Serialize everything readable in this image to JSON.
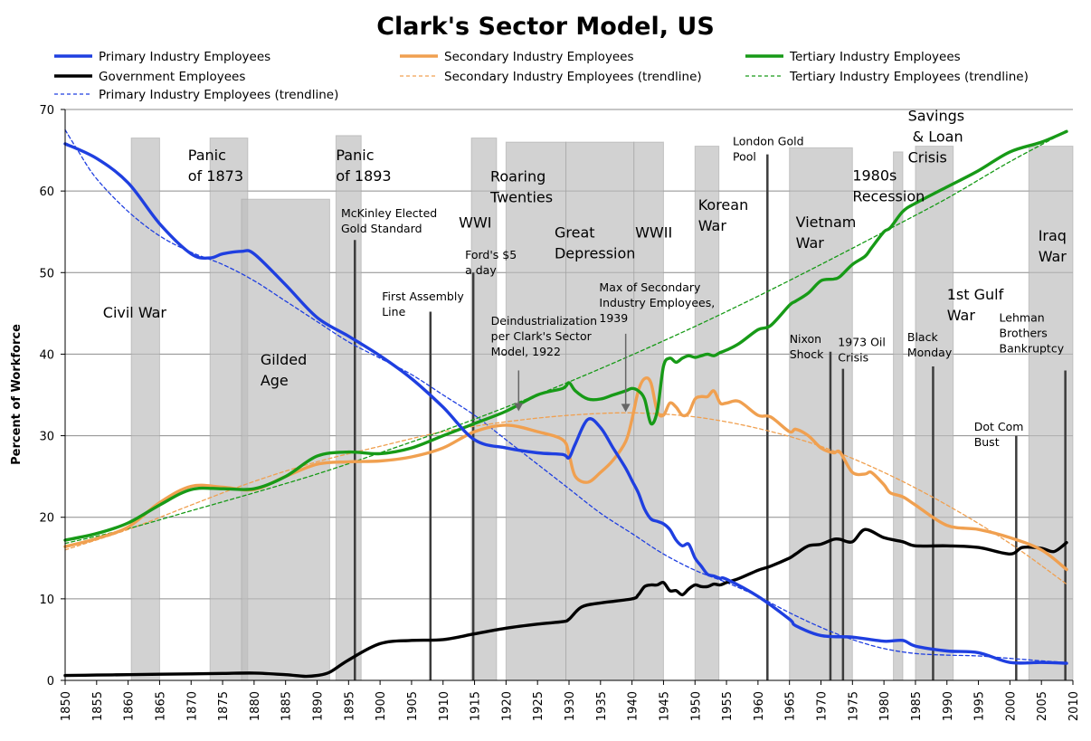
{
  "chart_data": {
    "type": "line",
    "title": "Clark's Sector Model, US",
    "xlabel": "",
    "ylabel": "Percent of Workforce",
    "xlim": [
      1850,
      2010
    ],
    "ylim": [
      0,
      70
    ],
    "xticks": [
      "1850",
      "1855",
      "1860",
      "1865",
      "1870",
      "1875",
      "1880",
      "1885",
      "1890",
      "1895",
      "1900",
      "1905",
      "1910",
      "1915",
      "1920",
      "1925",
      "1930",
      "1935",
      "1940",
      "1945",
      "1950",
      "1955",
      "1960",
      "1965",
      "1970",
      "1975",
      "1980",
      "1985",
      "1990",
      "1995",
      "2000",
      "2005",
      "2010"
    ],
    "yticks": [
      "0",
      "10",
      "20",
      "30",
      "40",
      "50",
      "60",
      "70"
    ],
    "grid": "horizontal",
    "legend_position": "top",
    "series": [
      {
        "name": "Primary Industry Employees",
        "color": "#1f3fe0",
        "style": "solid",
        "x": [
          1850,
          1855,
          1860,
          1865,
          1870,
          1873,
          1875,
          1878,
          1880,
          1885,
          1890,
          1895,
          1900,
          1905,
          1910,
          1915,
          1920,
          1925,
          1929,
          1930,
          1931,
          1933,
          1935,
          1937,
          1939,
          1940,
          1941,
          1942,
          1943,
          1944,
          1945,
          1946,
          1947,
          1948,
          1949,
          1950,
          1951,
          1952,
          1953,
          1954,
          1955,
          1960,
          1965,
          1966,
          1970,
          1975,
          1980,
          1983,
          1985,
          1990,
          1995,
          2000,
          2005,
          2009
        ],
        "y": [
          65.8,
          64.0,
          61.0,
          56.0,
          52.3,
          51.8,
          52.3,
          52.6,
          52.3,
          48.5,
          44.5,
          42.2,
          39.8,
          37.0,
          33.5,
          29.5,
          28.5,
          27.9,
          27.7,
          27.3,
          29.0,
          32.0,
          31.0,
          28.5,
          26.0,
          24.5,
          23.0,
          21.0,
          19.8,
          19.5,
          19.2,
          18.5,
          17.2,
          16.5,
          16.7,
          15.0,
          14.0,
          13.0,
          12.8,
          12.5,
          12.4,
          10.3,
          7.5,
          6.7,
          5.5,
          5.3,
          4.8,
          4.9,
          4.2,
          3.6,
          3.4,
          2.2,
          2.2,
          2.1
        ]
      },
      {
        "name": "Secondary Industry Employees",
        "color": "#f0a050",
        "style": "solid",
        "x": [
          1850,
          1855,
          1860,
          1865,
          1870,
          1875,
          1880,
          1885,
          1890,
          1895,
          1900,
          1905,
          1910,
          1915,
          1920,
          1925,
          1929,
          1930,
          1931,
          1933,
          1935,
          1937,
          1939,
          1940,
          1941,
          1942,
          1943,
          1944,
          1945,
          1946,
          1947,
          1948,
          1949,
          1950,
          1951,
          1952,
          1953,
          1954,
          1955,
          1957,
          1960,
          1962,
          1965,
          1966,
          1968,
          1970,
          1972,
          1973,
          1975,
          1977,
          1978,
          1980,
          1981,
          1983,
          1985,
          1990,
          1995,
          2000,
          2005,
          2009
        ],
        "y": [
          16.4,
          17.4,
          18.8,
          21.8,
          23.8,
          23.7,
          23.4,
          25.0,
          26.5,
          26.8,
          26.9,
          27.4,
          28.5,
          30.5,
          31.3,
          30.5,
          29.5,
          27.7,
          25.0,
          24.3,
          25.5,
          27.0,
          29.3,
          32.0,
          35.5,
          37.0,
          36.5,
          33.0,
          32.5,
          34.0,
          33.5,
          32.5,
          32.8,
          34.5,
          34.8,
          34.8,
          35.5,
          34.0,
          34.0,
          34.2,
          32.5,
          32.3,
          30.5,
          30.8,
          30.0,
          28.5,
          27.9,
          28.0,
          25.5,
          25.3,
          25.5,
          24.0,
          23.0,
          22.5,
          21.5,
          19.0,
          18.5,
          17.5,
          16.0,
          13.6
        ]
      },
      {
        "name": "Tertiary Industry Employees",
        "color": "#179a17",
        "style": "solid",
        "x": [
          1850,
          1855,
          1860,
          1865,
          1870,
          1875,
          1880,
          1885,
          1890,
          1895,
          1900,
          1905,
          1910,
          1915,
          1920,
          1925,
          1929,
          1930,
          1931,
          1933,
          1935,
          1937,
          1939,
          1940,
          1941,
          1942,
          1943,
          1944,
          1945,
          1946,
          1947,
          1948,
          1949,
          1950,
          1951,
          1952,
          1953,
          1954,
          1955,
          1957,
          1960,
          1962,
          1965,
          1966,
          1968,
          1970,
          1972,
          1973,
          1975,
          1977,
          1978,
          1980,
          1981,
          1983,
          1985,
          1990,
          1995,
          2000,
          2005,
          2009
        ],
        "y": [
          17.2,
          18.0,
          19.3,
          21.5,
          23.4,
          23.5,
          23.5,
          25.0,
          27.5,
          28.0,
          27.8,
          28.5,
          30.0,
          31.5,
          33.0,
          35.0,
          35.8,
          36.5,
          35.5,
          34.5,
          34.5,
          35.0,
          35.5,
          35.8,
          35.5,
          34.5,
          31.5,
          33.0,
          38.5,
          39.5,
          39.0,
          39.5,
          39.8,
          39.6,
          39.8,
          40.0,
          39.8,
          40.2,
          40.5,
          41.3,
          43.0,
          43.5,
          46.0,
          46.5,
          47.5,
          49.0,
          49.2,
          49.5,
          51.0,
          52.0,
          53.0,
          55.0,
          55.5,
          57.5,
          58.5,
          60.5,
          62.5,
          64.8,
          66.0,
          67.3
        ]
      },
      {
        "name": "Government Employees",
        "color": "#000000",
        "style": "solid",
        "x": [
          1850,
          1855,
          1860,
          1865,
          1870,
          1875,
          1880,
          1885,
          1888,
          1890,
          1892,
          1895,
          1900,
          1905,
          1910,
          1915,
          1920,
          1925,
          1929,
          1930,
          1932,
          1935,
          1940,
          1941,
          1942,
          1943,
          1944,
          1945,
          1946,
          1947,
          1948,
          1949,
          1950,
          1951,
          1952,
          1953,
          1954,
          1955,
          1957,
          1960,
          1962,
          1965,
          1966,
          1968,
          1970,
          1972,
          1973,
          1975,
          1977,
          1980,
          1983,
          1985,
          1990,
          1995,
          2000,
          2002,
          2005,
          2007,
          2009
        ],
        "y": [
          0.6,
          0.65,
          0.7,
          0.75,
          0.8,
          0.85,
          0.9,
          0.7,
          0.5,
          0.6,
          1.0,
          2.5,
          4.5,
          4.9,
          5.0,
          5.7,
          6.4,
          6.9,
          7.2,
          7.5,
          9.0,
          9.5,
          10.0,
          10.5,
          11.5,
          11.7,
          11.7,
          12.0,
          11.0,
          11.0,
          10.5,
          11.2,
          11.7,
          11.5,
          11.5,
          11.8,
          11.7,
          12.0,
          12.5,
          13.5,
          14.0,
          15.0,
          15.5,
          16.5,
          16.7,
          17.3,
          17.3,
          17.0,
          18.5,
          17.5,
          17.0,
          16.5,
          16.5,
          16.3,
          15.5,
          16.3,
          16.2,
          15.8,
          16.9
        ]
      },
      {
        "name": "Primary Industry Employees (trendline)",
        "color": "#1f3fe0",
        "style": "dashed",
        "x": [
          1850,
          1852,
          1855,
          1860,
          1865,
          1870,
          1875,
          1880,
          1885,
          1890,
          1895,
          1900,
          1905,
          1910,
          1915,
          1920,
          1925,
          1930,
          1935,
          1940,
          1945,
          1950,
          1955,
          1960,
          1965,
          1970,
          1975,
          1980,
          1985,
          1990,
          1995,
          2000,
          2005,
          2009
        ],
        "y": [
          67.5,
          65.0,
          61.5,
          57.5,
          54.5,
          52.5,
          51.0,
          49.0,
          46.5,
          44.0,
          41.5,
          39.5,
          37.5,
          35.0,
          32.5,
          29.5,
          26.5,
          23.5,
          20.5,
          18.0,
          15.5,
          13.5,
          12.0,
          10.3,
          8.3,
          6.5,
          5.0,
          3.9,
          3.3,
          3.1,
          3.0,
          2.7,
          2.4,
          2.2
        ]
      },
      {
        "name": "Secondary Industry Employees (trendline)",
        "color": "#f0a050",
        "style": "dashed",
        "x": [
          1850,
          1860,
          1870,
          1880,
          1890,
          1900,
          1910,
          1920,
          1930,
          1940,
          1950,
          1960,
          1970,
          1980,
          1990,
          2000,
          2009
        ],
        "y": [
          16.0,
          18.5,
          21.5,
          24.4,
          26.8,
          28.7,
          30.5,
          31.7,
          32.5,
          32.8,
          32.3,
          30.9,
          28.7,
          25.5,
          21.5,
          16.8,
          11.8
        ]
      },
      {
        "name": "Tertiary Industry Employees (trendline)",
        "color": "#179a17",
        "style": "dashed",
        "x": [
          1850,
          1860,
          1870,
          1880,
          1890,
          1900,
          1910,
          1920,
          1930,
          1940,
          1950,
          1960,
          1970,
          1980,
          1990,
          2000,
          2009
        ],
        "y": [
          16.8,
          18.6,
          20.8,
          23.0,
          25.3,
          27.9,
          30.6,
          33.5,
          36.6,
          39.9,
          43.4,
          47.1,
          51.0,
          55.0,
          59.1,
          63.6,
          67.3
        ]
      }
    ],
    "legend": [
      {
        "label": "Primary Industry Employees",
        "series": 0
      },
      {
        "label": "Secondary Industry Employees",
        "series": 1
      },
      {
        "label": "Tertiary Industry Employees",
        "series": 2
      },
      {
        "label": "Government Employees",
        "series": 3
      },
      {
        "label": "Secondary Industry Employees (trendline)",
        "series": 5
      },
      {
        "label": "Tertiary Industry Employees (trendline)",
        "series": 6
      },
      {
        "label": "Primary Industry Employees (trendline)",
        "series": 4
      }
    ],
    "shaded_periods": [
      {
        "x0": 1860.5,
        "x1": 1865,
        "ytop": 66.5
      },
      {
        "x0": 1873,
        "x1": 1879,
        "ytop": 66.5
      },
      {
        "x0": 1878,
        "x1": 1892,
        "ytop": 59.0
      },
      {
        "x0": 1893,
        "x1": 1897,
        "ytop": 66.8
      },
      {
        "x0": 1914.5,
        "x1": 1918.5,
        "ytop": 66.5
      },
      {
        "x0": 1920,
        "x1": 1929.5,
        "ytop": 66.0
      },
      {
        "x0": 1929.5,
        "x1": 1940.3,
        "ytop": 66.0
      },
      {
        "x0": 1940.3,
        "x1": 1945,
        "ytop": 66.0
      },
      {
        "x0": 1950,
        "x1": 1953.8,
        "ytop": 65.5
      },
      {
        "x0": 1965,
        "x1": 1975,
        "ytop": 65.3
      },
      {
        "x0": 1981.5,
        "x1": 1983,
        "ytop": 64.8
      },
      {
        "x0": 1985,
        "x1": 1991,
        "ytop": 65.5
      },
      {
        "x0": 2003,
        "x1": 2010,
        "ytop": 65.5
      }
    ],
    "event_lines": [
      {
        "x": 1896,
        "ytop": 54.0
      },
      {
        "x": 1908,
        "ytop": 45.2
      },
      {
        "x": 1914.8,
        "ytop": 50.0
      },
      {
        "x": 1961.5,
        "ytop": 64.5
      },
      {
        "x": 1971.5,
        "ytop": 40.3
      },
      {
        "x": 1973.5,
        "ytop": 38.2
      },
      {
        "x": 1987.8,
        "ytop": 38.5
      },
      {
        "x": 2001,
        "ytop": 30.0
      },
      {
        "x": 2008.8,
        "ytop": 38.0
      }
    ],
    "annotations": [
      {
        "lines": [
          "Civil War"
        ],
        "x": 1856,
        "y": 44.5,
        "size": "lg"
      },
      {
        "lines": [
          "Panic",
          "of 1873"
        ],
        "x": 1869.5,
        "y": 63.8,
        "size": "lg"
      },
      {
        "lines": [
          "Gilded",
          "Age"
        ],
        "x": 1881,
        "y": 38.7,
        "size": "lg"
      },
      {
        "lines": [
          "Panic",
          "of 1893"
        ],
        "x": 1893,
        "y": 63.8,
        "size": "lg"
      },
      {
        "lines": [
          "McKinley Elected",
          "Gold  Standard"
        ],
        "x": 1893.8,
        "y": 56.8,
        "size": "sm"
      },
      {
        "lines": [
          "First Assembly",
          "Line"
        ],
        "x": 1900.3,
        "y": 46.6,
        "size": "sm"
      },
      {
        "lines": [
          "WWI"
        ],
        "x": 1912.5,
        "y": 55.5,
        "size": "lg"
      },
      {
        "lines": [
          "Ford's $5",
          "a day"
        ],
        "x": 1913.5,
        "y": 51.7,
        "size": "sm"
      },
      {
        "lines": [
          "Roaring",
          "Twenties"
        ],
        "x": 1917.5,
        "y": 61.2,
        "size": "lg"
      },
      {
        "lines": [
          "Great",
          "Depression"
        ],
        "x": 1927.7,
        "y": 54.3,
        "size": "lg"
      },
      {
        "lines": [
          "WWII"
        ],
        "x": 1940.5,
        "y": 54.3,
        "size": "lg"
      },
      {
        "lines": [
          "Deindustrialization",
          "per Clark's Sector",
          "Model, 1922"
        ],
        "x": 1917.6,
        "y": 43.6,
        "size": "sm"
      },
      {
        "lines": [
          "Max of Secondary",
          "Industry Employees,",
          "1939"
        ],
        "x": 1934.8,
        "y": 47.7,
        "size": "sm"
      },
      {
        "lines": [
          "Korean",
          "War"
        ],
        "x": 1950.5,
        "y": 57.7,
        "size": "lg"
      },
      {
        "lines": [
          "London Gold",
          "Pool"
        ],
        "x": 1956,
        "y": 65.6,
        "size": "sm"
      },
      {
        "lines": [
          "Vietnam",
          "War"
        ],
        "x": 1966,
        "y": 55.6,
        "size": "lg"
      },
      {
        "lines": [
          "1980s",
          "Recession"
        ],
        "x": 1975,
        "y": 61.3,
        "size": "lg"
      },
      {
        "lines": [
          "Savings",
          " & Loan",
          "Crisis"
        ],
        "x": 1983.8,
        "y": 68.6,
        "size": "lg"
      },
      {
        "lines": [
          "Nixon",
          "Shock"
        ],
        "x": 1965,
        "y": 41.4,
        "size": "sm"
      },
      {
        "lines": [
          "1973 Oil",
          "Crisis"
        ],
        "x": 1972.7,
        "y": 41.0,
        "size": "sm"
      },
      {
        "lines": [
          "Black",
          "Monday"
        ],
        "x": 1983.7,
        "y": 41.6,
        "size": "sm"
      },
      {
        "lines": [
          "1st Gulf",
          "War"
        ],
        "x": 1990,
        "y": 46.7,
        "size": "lg"
      },
      {
        "lines": [
          "Lehman",
          "Brothers",
          "Bankruptcy"
        ],
        "x": 1998.3,
        "y": 44.0,
        "size": "sm"
      },
      {
        "lines": [
          "Dot Com",
          "Bust"
        ],
        "x": 1994.3,
        "y": 30.6,
        "size": "sm"
      },
      {
        "lines": [
          "Iraq",
          "War"
        ],
        "x": 2004.5,
        "y": 53.9,
        "size": "lg"
      }
    ],
    "arrows": [
      {
        "x": 1922,
        "y_from": 38.0,
        "y_to": 33.0
      },
      {
        "x": 1939,
        "y_from": 42.5,
        "y_to": 32.9
      }
    ]
  }
}
